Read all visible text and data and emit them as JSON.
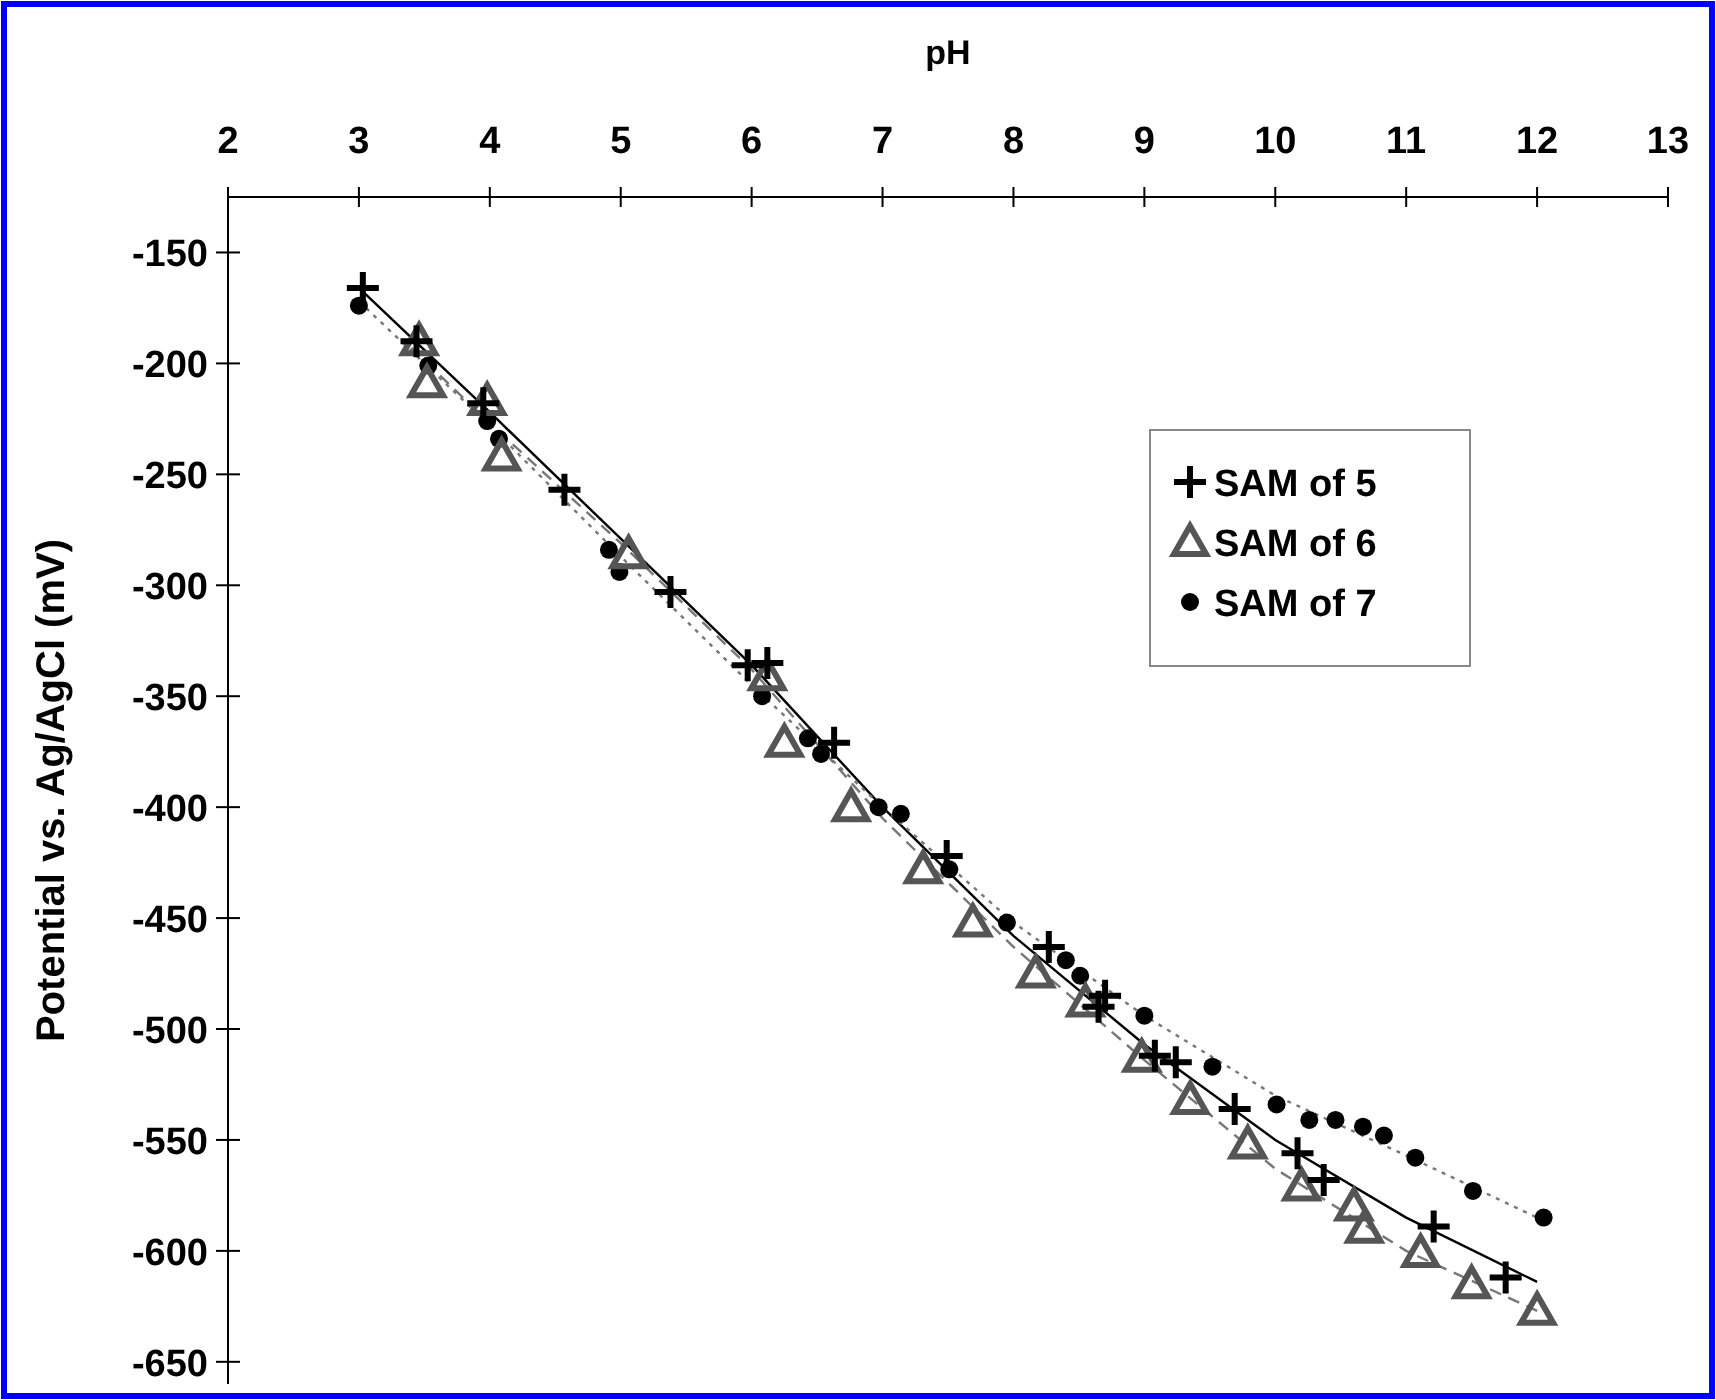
{
  "chart_data": {
    "type": "scatter",
    "xlabel": "pH",
    "ylabel": "Potential vs. Ag/AgCl (mV)",
    "xlim": [
      2,
      13
    ],
    "xticks": [
      2,
      3,
      4,
      5,
      6,
      7,
      8,
      9,
      10,
      11,
      12,
      13
    ],
    "ylim": [
      -660,
      -125
    ],
    "yticks": [
      -150,
      -200,
      -250,
      -300,
      -350,
      -400,
      -450,
      -500,
      -550,
      -600,
      -650
    ],
    "legend": "right",
    "grid": false,
    "series": [
      {
        "name": "SAM of 5",
        "color": "#000000",
        "marker": "cross",
        "x": [
          3.03,
          3.44,
          3.95,
          4.57,
          5.38,
          5.97,
          6.12,
          6.63,
          7.49,
          8.27,
          8.65,
          8.7,
          9.08,
          9.24,
          9.69,
          10.17,
          10.37,
          11.21,
          11.76
        ],
        "values": [
          -166,
          -190,
          -218,
          -257,
          -303,
          -336,
          -335,
          -371,
          -422,
          -463,
          -490,
          -485,
          -512,
          -515,
          -536,
          -556,
          -568,
          -589,
          -612
        ]
      },
      {
        "name": "SAM of 6",
        "color": "#555555",
        "marker": "triangle",
        "x": [
          3.46,
          3.52,
          3.98,
          4.09,
          5.06,
          6.12,
          6.25,
          6.76,
          7.31,
          7.69,
          8.17,
          8.55,
          8.98,
          9.35,
          9.79,
          10.2,
          10.6,
          10.68,
          11.11,
          11.5,
          12.0
        ],
        "values": [
          -190,
          -209,
          -217,
          -242,
          -286,
          -341,
          -371,
          -400,
          -428,
          -452,
          -475,
          -488,
          -513,
          -532,
          -552,
          -571,
          -580,
          -590,
          -601,
          -615,
          -627
        ]
      },
      {
        "name": "SAM of 7",
        "color": "#000000",
        "marker": "circle",
        "x": [
          3.0,
          3.53,
          3.98,
          4.07,
          4.91,
          4.99,
          6.08,
          6.43,
          6.53,
          6.97,
          7.14,
          7.51,
          7.95,
          8.4,
          8.51,
          9.0,
          9.52,
          10.01,
          10.26,
          10.46,
          10.67,
          10.83,
          11.07,
          11.51,
          12.05
        ],
        "values": [
          -174,
          -201,
          -226,
          -234,
          -284,
          -294,
          -350,
          -369,
          -376,
          -400,
          -403,
          -428,
          -452,
          -469,
          -476,
          -494,
          -517,
          -534,
          -541,
          -541,
          -544,
          -548,
          -558,
          -573,
          -585
        ]
      },
      {
        "type": "line",
        "color": "#000000",
        "line_style": "solid",
        "x": [
          3,
          4,
          5,
          6,
          7,
          8,
          9,
          10,
          11,
          12
        ],
        "values": [
          -166,
          -222,
          -279,
          -336,
          -400,
          -458,
          -507,
          -550,
          -585,
          -614
        ]
      },
      {
        "type": "line",
        "color": "#777777",
        "line_style": "dashed",
        "x": [
          3.4,
          4,
          5,
          6,
          7,
          8,
          9,
          10,
          11,
          12
        ],
        "values": [
          -193,
          -227,
          -281,
          -338,
          -405,
          -463,
          -514,
          -563,
          -600,
          -627
        ]
      },
      {
        "type": "line",
        "color": "#777777",
        "line_style": "dotted",
        "x": [
          3,
          4,
          5,
          6,
          7,
          8,
          9,
          10,
          11,
          12
        ],
        "values": [
          -172,
          -228,
          -287,
          -345,
          -400,
          -452,
          -494,
          -530,
          -557,
          -585
        ]
      }
    ]
  }
}
